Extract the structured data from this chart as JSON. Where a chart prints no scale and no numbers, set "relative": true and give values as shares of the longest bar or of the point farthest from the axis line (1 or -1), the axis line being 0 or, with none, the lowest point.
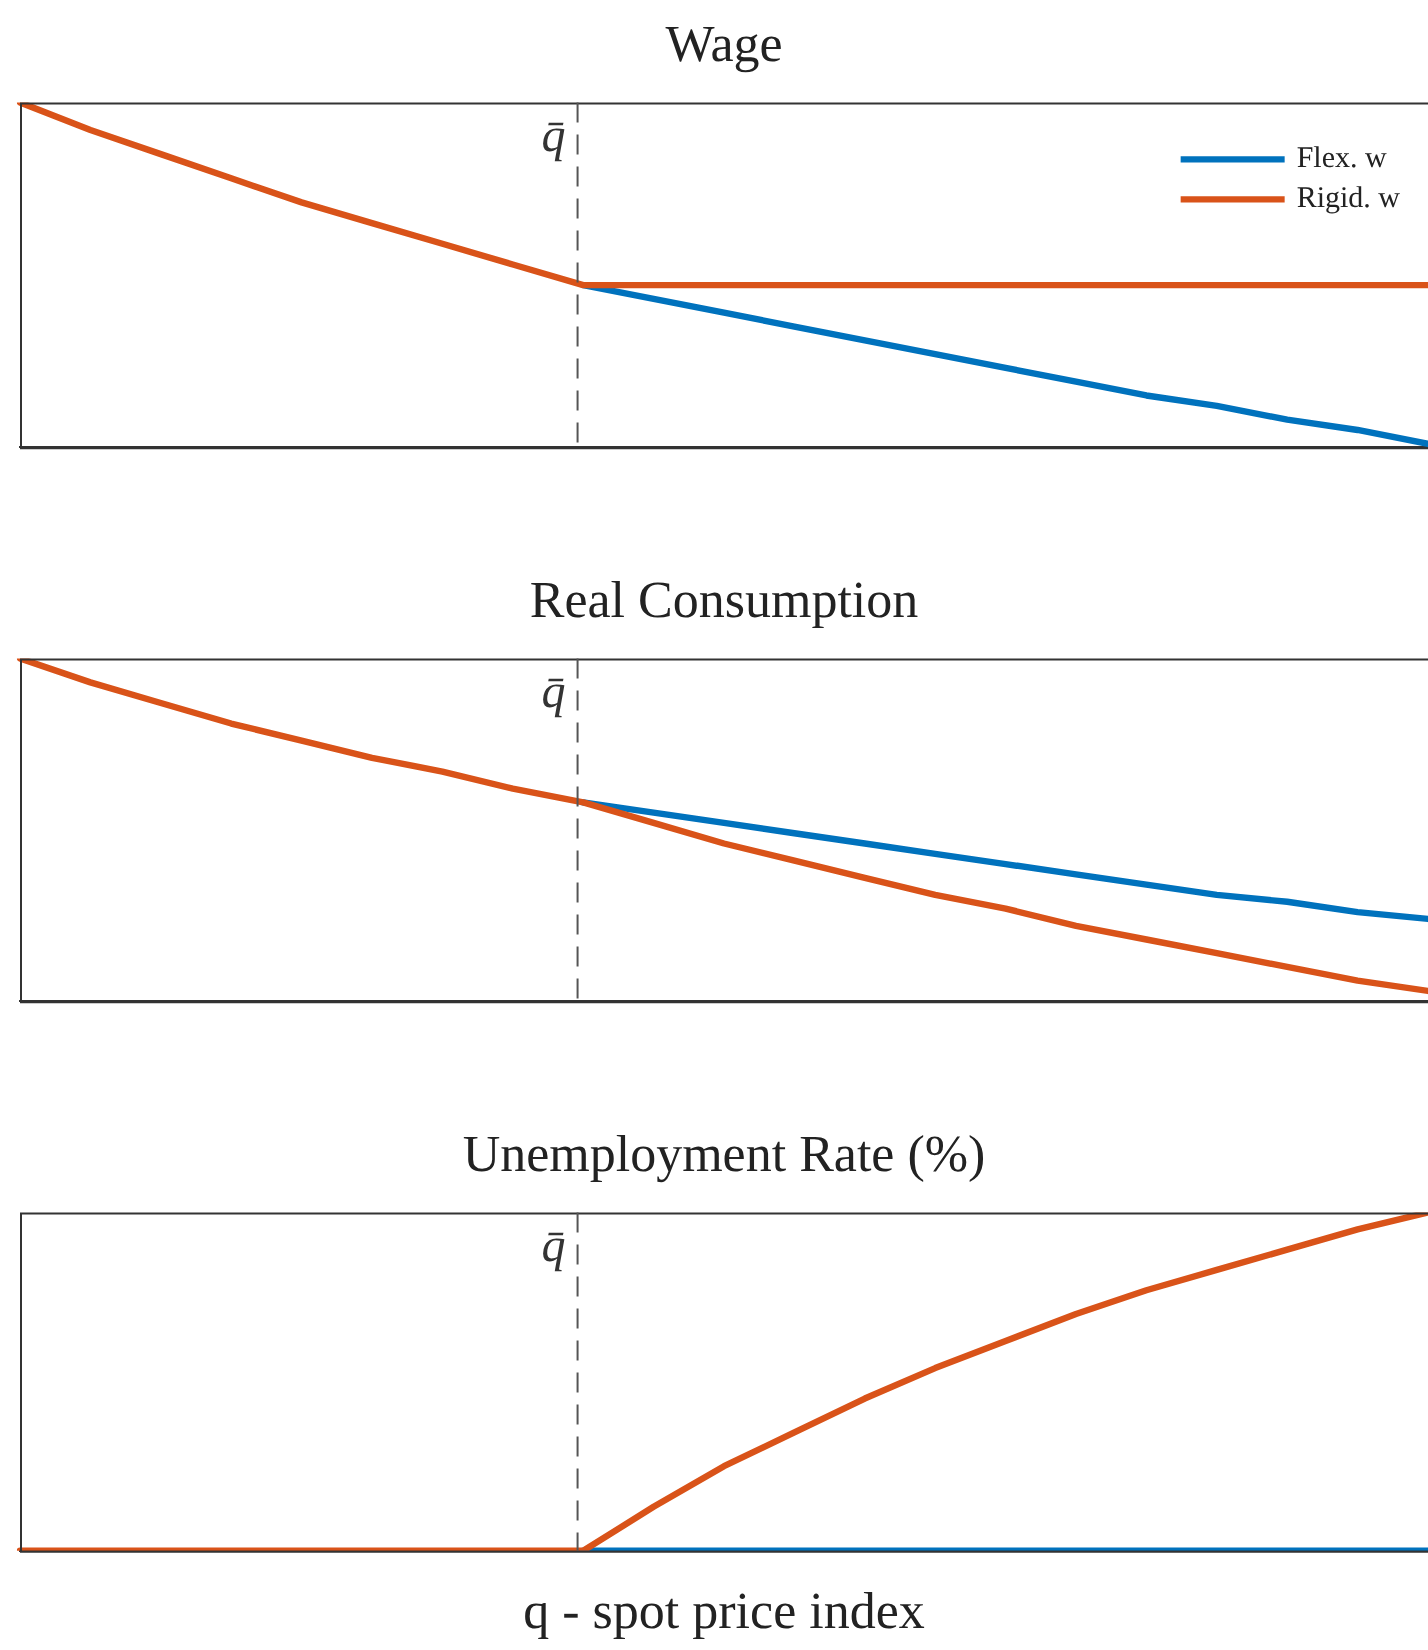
{
  "chart_data": [
    {
      "type": "line",
      "title": "Wage",
      "relative": true,
      "legend": "top right",
      "categories": [
        null,
        null,
        null,
        null,
        null,
        null,
        null,
        null,
        null,
        null,
        null,
        null,
        null,
        null,
        null,
        null,
        null,
        null,
        null,
        null,
        null
      ],
      "annotations": [
        "q̄"
      ],
      "series": [
        {
          "name": "Flex. w",
          "color": "#0072bd",
          "values": [
            null,
            null,
            null,
            null,
            null,
            null,
            null,
            null,
            0.47,
            0.43,
            0.39,
            0.35,
            0.31,
            0.27,
            0.23,
            0.19,
            0.15,
            0.12,
            0.08,
            0.05,
            0.01
          ]
        },
        {
          "name": "Rigid. w",
          "color": "#d95319",
          "values": [
            1,
            0.92,
            0.85,
            0.78,
            0.71,
            0.65,
            0.59,
            0.53,
            0.47,
            0.47,
            0.47,
            0.47,
            0.47,
            0.47,
            0.47,
            0.47,
            0.47,
            0.47,
            0.47,
            0.47,
            0.47
          ]
        }
      ]
    },
    {
      "type": "line",
      "title": "Real Consumption",
      "relative": true,
      "legend": false,
      "categories": [
        null,
        null,
        null,
        null,
        null,
        null,
        null,
        null,
        null,
        null,
        null,
        null,
        null,
        null,
        null,
        null,
        null,
        null,
        null,
        null,
        null
      ],
      "annotations": [
        "q̄"
      ],
      "series": [
        {
          "color": "#0072bd",
          "values": [
            null,
            null,
            null,
            null,
            null,
            null,
            null,
            null,
            0.58,
            0.55,
            0.52,
            0.49,
            0.46,
            0.43,
            0.4,
            0.37,
            0.34,
            0.31,
            0.29,
            0.26,
            0.24
          ]
        },
        {
          "color": "#d95319",
          "values": [
            1,
            0.93,
            0.87,
            0.81,
            0.76,
            0.71,
            0.67,
            0.62,
            0.58,
            0.52,
            0.46,
            0.41,
            0.36,
            0.31,
            0.27,
            0.22,
            0.18,
            0.14,
            0.1,
            0.06,
            0.03
          ]
        }
      ]
    },
    {
      "type": "line",
      "title": "Unemployment Rate (%)",
      "xlabel": "q - spot price index",
      "relative": true,
      "legend": false,
      "categories": [
        null,
        null,
        null,
        null,
        null,
        null,
        null,
        null,
        null,
        null,
        null,
        null,
        null,
        null,
        null,
        null,
        null,
        null,
        null,
        null,
        null
      ],
      "annotations": [
        "q̄"
      ],
      "series": [
        {
          "color": "#0072bd",
          "values": [
            null,
            null,
            null,
            null,
            null,
            null,
            null,
            null,
            0,
            0,
            0,
            0,
            0,
            0,
            0,
            0,
            0,
            0,
            0,
            0,
            0
          ]
        },
        {
          "color": "#d95319",
          "values": [
            0,
            0,
            0,
            0,
            0,
            0,
            0,
            0,
            0,
            0.13,
            0.25,
            0.35,
            0.45,
            0.54,
            0.62,
            0.7,
            0.77,
            0.83,
            0.89,
            0.95,
            1
          ]
        }
      ]
    }
  ]
}
